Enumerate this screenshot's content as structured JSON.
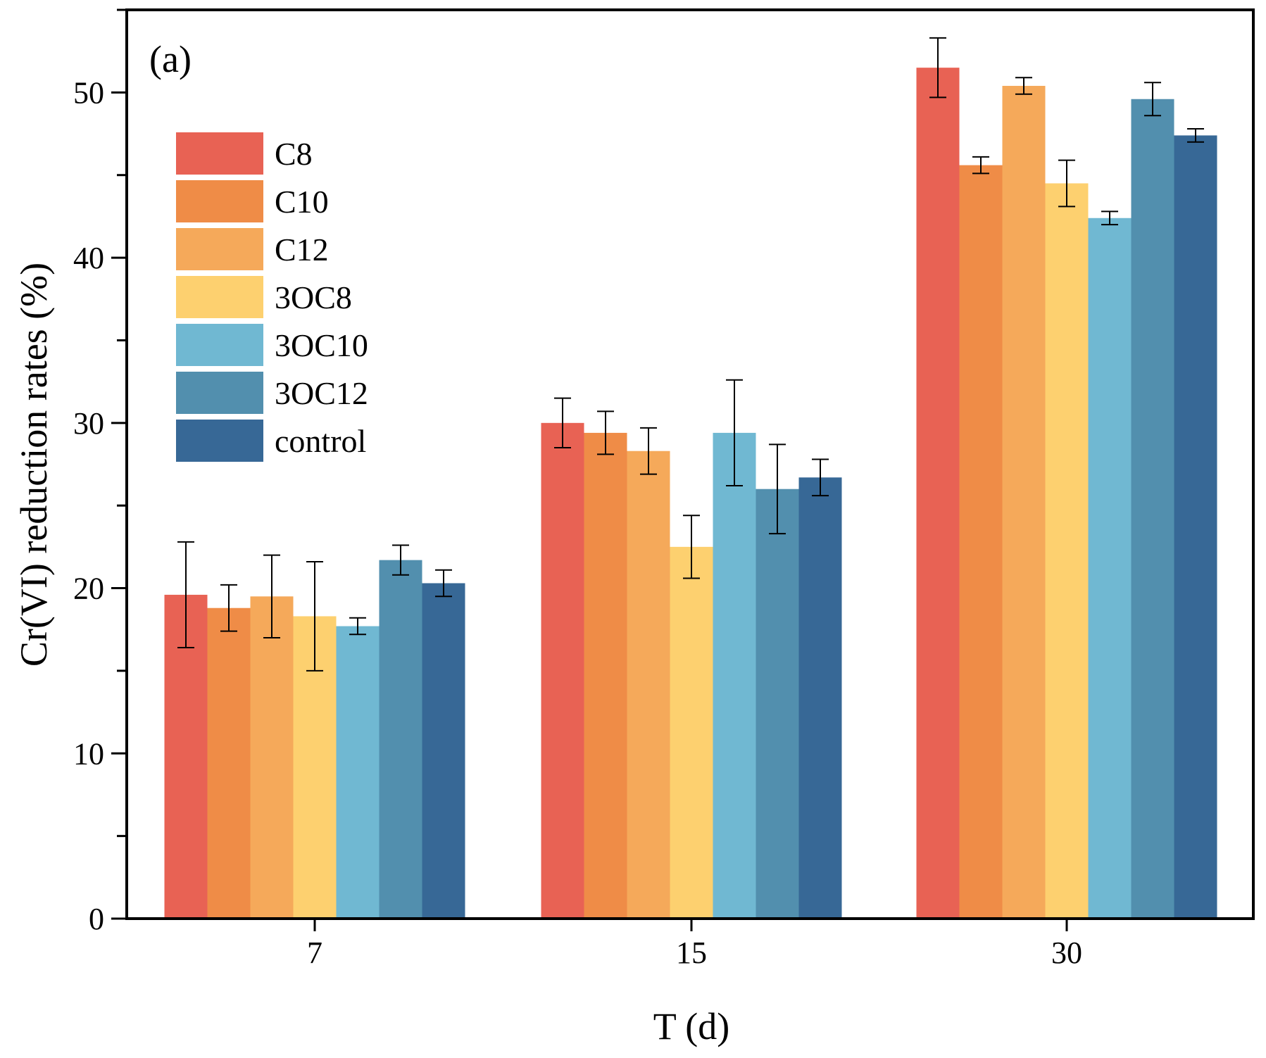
{
  "chart_data": {
    "type": "bar",
    "panel_label": "(a)",
    "xlabel": "T (d)",
    "ylabel": "Cr(VI) reduction rates (%)",
    "ylim": [
      0,
      55
    ],
    "yticks": [
      0,
      10,
      20,
      30,
      40,
      50
    ],
    "categories": [
      "7",
      "15",
      "30"
    ],
    "legend_position": "top-left",
    "series": [
      {
        "name": "C8",
        "color": "#E86254",
        "values": [
          19.6,
          30.0,
          51.5
        ],
        "errors": [
          3.2,
          1.5,
          1.8
        ]
      },
      {
        "name": "C10",
        "color": "#EF8C47",
        "values": [
          18.8,
          29.4,
          45.6
        ],
        "errors": [
          1.4,
          1.3,
          0.5
        ]
      },
      {
        "name": "C12",
        "color": "#F5A95A",
        "values": [
          19.5,
          28.3,
          50.4
        ],
        "errors": [
          2.5,
          1.4,
          0.5
        ]
      },
      {
        "name": "3OC8",
        "color": "#FDD06F",
        "values": [
          18.3,
          22.5,
          44.5
        ],
        "errors": [
          3.3,
          1.9,
          1.4
        ]
      },
      {
        "name": "3OC10",
        "color": "#70B8D2",
        "values": [
          17.7,
          29.4,
          42.4
        ],
        "errors": [
          0.5,
          3.2,
          0.4
        ]
      },
      {
        "name": "3OC12",
        "color": "#528FAE",
        "values": [
          21.7,
          26.0,
          49.6
        ],
        "errors": [
          0.9,
          2.7,
          1.0
        ]
      },
      {
        "name": "control",
        "color": "#376896",
        "values": [
          20.3,
          26.7,
          47.4
        ],
        "errors": [
          0.8,
          1.1,
          0.4
        ]
      }
    ]
  }
}
